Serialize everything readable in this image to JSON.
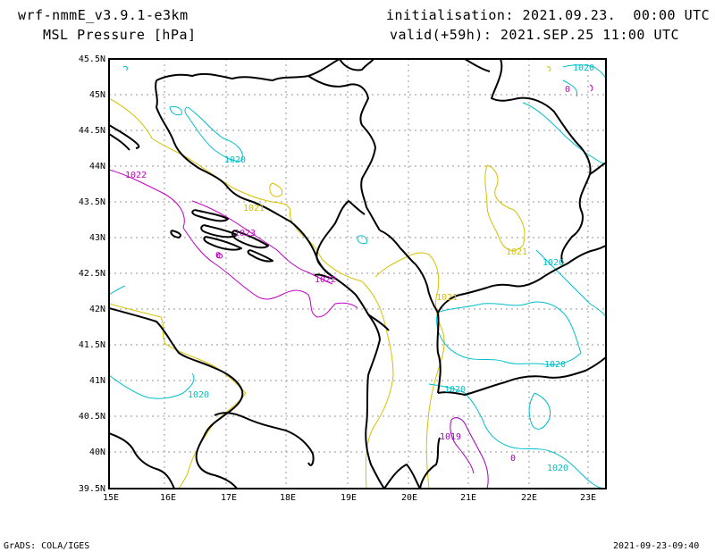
{
  "header": {
    "model": "wrf-nmmE_v3.9.1-e3km",
    "field": "MSL Pressure [hPa]",
    "init": "initialisation: 2021.09.23.  00:00 UTC",
    "valid": "valid(+59h): 2021.SEP.25 11:00 UTC"
  },
  "footer": {
    "left": "GrADS: COLA/IGES",
    "right": "2021-09-23-09:40"
  },
  "axes": {
    "lat_labels": [
      "45.5N",
      "45N",
      "44.5N",
      "44N",
      "43.5N",
      "43N",
      "42.5N",
      "42N",
      "41.5N",
      "41N",
      "40.5N",
      "40N",
      "39.5N"
    ],
    "lon_labels": [
      "15E",
      "16E",
      "17E",
      "18E",
      "19E",
      "20E",
      "21E",
      "22E",
      "23E"
    ]
  },
  "contour_labels": [
    {
      "id": "c1",
      "text": "1020",
      "color": "#00bfc8"
    },
    {
      "id": "c2",
      "text": "1020",
      "color": "#00bfc8"
    },
    {
      "id": "c3",
      "text": "1022",
      "color": "#c000c0"
    },
    {
      "id": "c4",
      "text": "1021",
      "color": "#d8c000"
    },
    {
      "id": "c5",
      "text": "1023",
      "color": "#c000c0"
    },
    {
      "id": "c6",
      "text": "1021",
      "color": "#d8c000"
    },
    {
      "id": "c7",
      "text": "1020",
      "color": "#00bfc8"
    },
    {
      "id": "c8",
      "text": "1022",
      "color": "#c000c0"
    },
    {
      "id": "c9",
      "text": "1021",
      "color": "#d8c000"
    },
    {
      "id": "c10",
      "text": "1020",
      "color": "#00bfc8"
    },
    {
      "id": "c11",
      "text": "1020",
      "color": "#00bfc8"
    },
    {
      "id": "c12",
      "text": "1020",
      "color": "#00bfc8"
    },
    {
      "id": "c13",
      "text": "1019",
      "color": "#a000c0"
    },
    {
      "id": "c14",
      "text": "1020",
      "color": "#00bfc8"
    },
    {
      "id": "c15",
      "text": "0",
      "color": "#c000c0"
    },
    {
      "id": "c16",
      "text": "0",
      "color": "#c000c0"
    },
    {
      "id": "c17",
      "text": "0",
      "color": "#a000c0"
    }
  ],
  "colors": {
    "cyan": "#00bfc8",
    "yellow": "#d8c000",
    "magenta": "#c000c0",
    "purple": "#a000c0",
    "border": "#000000"
  }
}
